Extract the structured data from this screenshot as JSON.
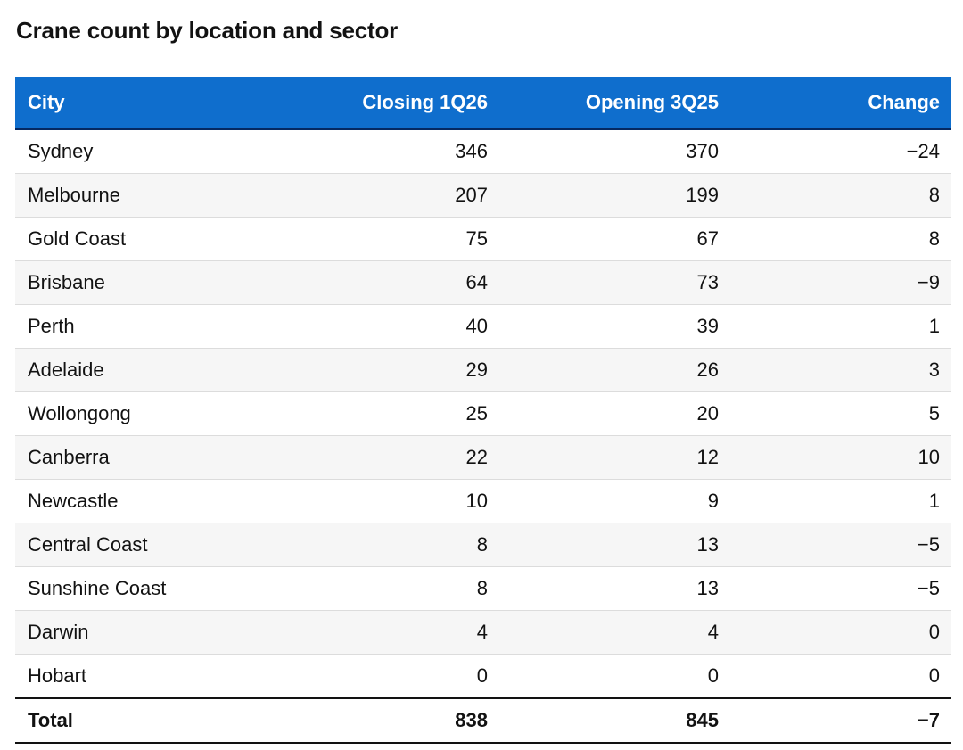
{
  "title": "Crane count by location and sector",
  "table": {
    "headers": {
      "city": "City",
      "closing": "Closing 1Q26",
      "opening": "Opening 3Q25",
      "change": "Change"
    },
    "rows": [
      {
        "city": "Sydney",
        "closing": "346",
        "opening": "370",
        "change": "−24"
      },
      {
        "city": "Melbourne",
        "closing": "207",
        "opening": "199",
        "change": "8"
      },
      {
        "city": "Gold Coast",
        "closing": "75",
        "opening": "67",
        "change": "8"
      },
      {
        "city": "Brisbane",
        "closing": "64",
        "opening": "73",
        "change": "−9"
      },
      {
        "city": "Perth",
        "closing": "40",
        "opening": "39",
        "change": "1"
      },
      {
        "city": "Adelaide",
        "closing": "29",
        "opening": "26",
        "change": "3"
      },
      {
        "city": "Wollongong",
        "closing": "25",
        "opening": "20",
        "change": "5"
      },
      {
        "city": "Canberra",
        "closing": "22",
        "opening": "12",
        "change": "10"
      },
      {
        "city": "Newcastle",
        "closing": "10",
        "opening": "9",
        "change": "1"
      },
      {
        "city": "Central Coast",
        "closing": "8",
        "opening": "13",
        "change": "−5"
      },
      {
        "city": "Sunshine Coast",
        "closing": "8",
        "opening": "13",
        "change": "−5"
      },
      {
        "city": "Darwin",
        "closing": "4",
        "opening": "4",
        "change": "0"
      },
      {
        "city": "Hobart",
        "closing": "0",
        "opening": "0",
        "change": "0"
      }
    ],
    "total": {
      "city": "Total",
      "closing": "838",
      "opening": "845",
      "change": "−7"
    }
  },
  "colors": {
    "header_background": "#0f6ecd",
    "header_text": "#ffffff",
    "alt_row": "#f6f6f6"
  }
}
